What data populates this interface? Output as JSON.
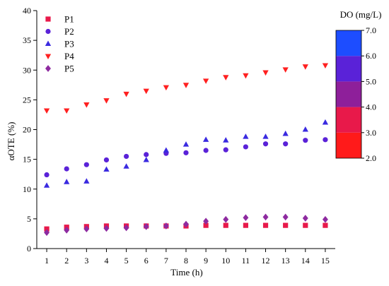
{
  "chart_data": {
    "type": "scatter",
    "xlabel": "Time (h)",
    "ylabel": "αOTE (%)",
    "xlim": [
      0.5,
      15.5
    ],
    "ylim": [
      0,
      40
    ],
    "xticks": [
      1,
      2,
      3,
      4,
      5,
      6,
      7,
      8,
      9,
      10,
      11,
      12,
      13,
      14,
      15
    ],
    "yticks": [
      0,
      5,
      10,
      15,
      20,
      25,
      30,
      35,
      40
    ],
    "grid": false,
    "legend_position": "top-left",
    "series": [
      {
        "name": "P1",
        "marker": "square",
        "color": "#e8194a",
        "x": [
          1,
          2,
          3,
          4,
          5,
          6,
          7,
          8,
          9,
          10,
          11,
          12,
          13,
          14,
          15
        ],
        "y": [
          3.3,
          3.6,
          3.7,
          3.8,
          3.8,
          3.8,
          3.8,
          3.8,
          3.9,
          3.9,
          3.9,
          3.9,
          3.9,
          3.9,
          3.9
        ]
      },
      {
        "name": "P2",
        "marker": "circle",
        "color": "#5a22d8",
        "x": [
          1,
          2,
          3,
          4,
          5,
          6,
          7,
          8,
          9,
          10,
          11,
          12,
          13,
          14,
          15
        ],
        "y": [
          12.4,
          13.4,
          14.1,
          14.9,
          15.5,
          15.8,
          16.0,
          16.1,
          16.5,
          16.6,
          17.1,
          17.6,
          17.6,
          18.2,
          18.3
        ]
      },
      {
        "name": "P3",
        "marker": "triangle-up",
        "color": "#3a2ae0",
        "x": [
          1,
          2,
          3,
          4,
          5,
          6,
          7,
          8,
          9,
          10,
          11,
          12,
          13,
          14,
          15
        ],
        "y": [
          10.6,
          11.2,
          11.3,
          13.3,
          13.8,
          14.9,
          16.5,
          17.5,
          18.3,
          18.2,
          18.8,
          18.8,
          19.3,
          20.0,
          21.2
        ]
      },
      {
        "name": "P4",
        "marker": "triangle-down",
        "color": "#ff2020",
        "x": [
          1,
          2,
          3,
          4,
          5,
          6,
          7,
          8,
          9,
          10,
          11,
          12,
          13,
          14,
          15
        ],
        "y": [
          23.2,
          23.2,
          24.2,
          24.9,
          26.0,
          26.5,
          27.1,
          27.5,
          28.2,
          28.8,
          29.1,
          29.6,
          30.1,
          30.6,
          30.8
        ]
      },
      {
        "name": "P5",
        "marker": "diamond",
        "color": "#8e2aa0",
        "x": [
          1,
          2,
          3,
          4,
          5,
          6,
          7,
          8,
          9,
          10,
          11,
          12,
          13,
          14,
          15
        ],
        "y": [
          2.7,
          3.1,
          3.3,
          3.4,
          3.5,
          3.7,
          3.8,
          4.1,
          4.6,
          4.9,
          5.2,
          5.3,
          5.3,
          5.1,
          4.9
        ]
      }
    ],
    "colorbar": {
      "title": "DO (mg/L)",
      "range": [
        2.0,
        7.0
      ],
      "tick_labels": [
        "7.0",
        "6.0",
        "5.0",
        "4.0",
        "3.0",
        "2.0"
      ],
      "bands": [
        {
          "from": 2.0,
          "to": 3.0,
          "color": "#ff1a1a"
        },
        {
          "from": 3.0,
          "to": 4.0,
          "color": "#e8194a"
        },
        {
          "from": 4.0,
          "to": 5.0,
          "color": "#8e1f9a"
        },
        {
          "from": 5.0,
          "to": 6.0,
          "color": "#5a22d8"
        },
        {
          "from": 6.0,
          "to": 7.0,
          "color": "#1d4dff"
        }
      ]
    }
  }
}
